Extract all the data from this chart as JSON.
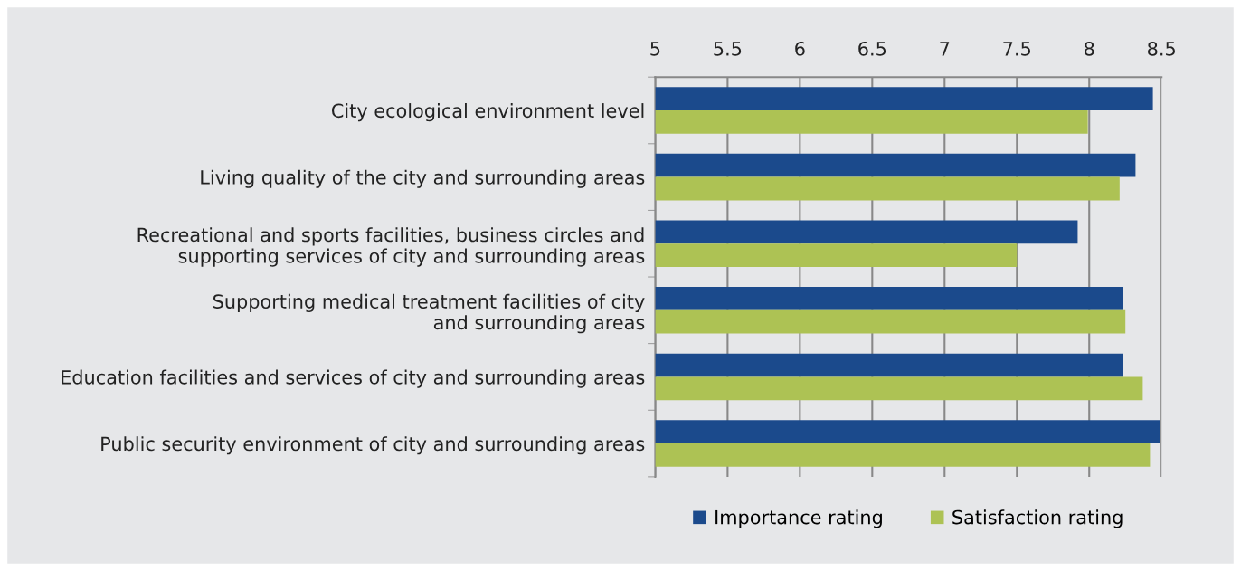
{
  "chart_data": {
    "type": "bar",
    "orientation": "horizontal",
    "categories": [
      "City ecological environment level",
      "Living quality of the city and surrounding areas",
      "Recreational and sports facilities, business circles and\nsupporting services of city and surrounding areas",
      "Supporting medical treatment facilities of city\nand surrounding areas",
      "Education facilities and services of city and surrounding areas",
      "Public security environment of city and surrounding areas"
    ],
    "series": [
      {
        "name": "Importance rating",
        "color": "#1b4a8c",
        "values": [
          8.44,
          8.32,
          7.92,
          8.23,
          8.23,
          8.49
        ]
      },
      {
        "name": "Satisfaction rating",
        "color": "#adc254",
        "values": [
          7.99,
          8.21,
          7.5,
          8.25,
          8.37,
          8.42
        ]
      }
    ],
    "xlim": [
      5,
      8.5
    ],
    "xticks": [
      5,
      5.5,
      6,
      6.5,
      7,
      7.5,
      8,
      8.5
    ],
    "grid": "x",
    "legend": "bottom"
  }
}
